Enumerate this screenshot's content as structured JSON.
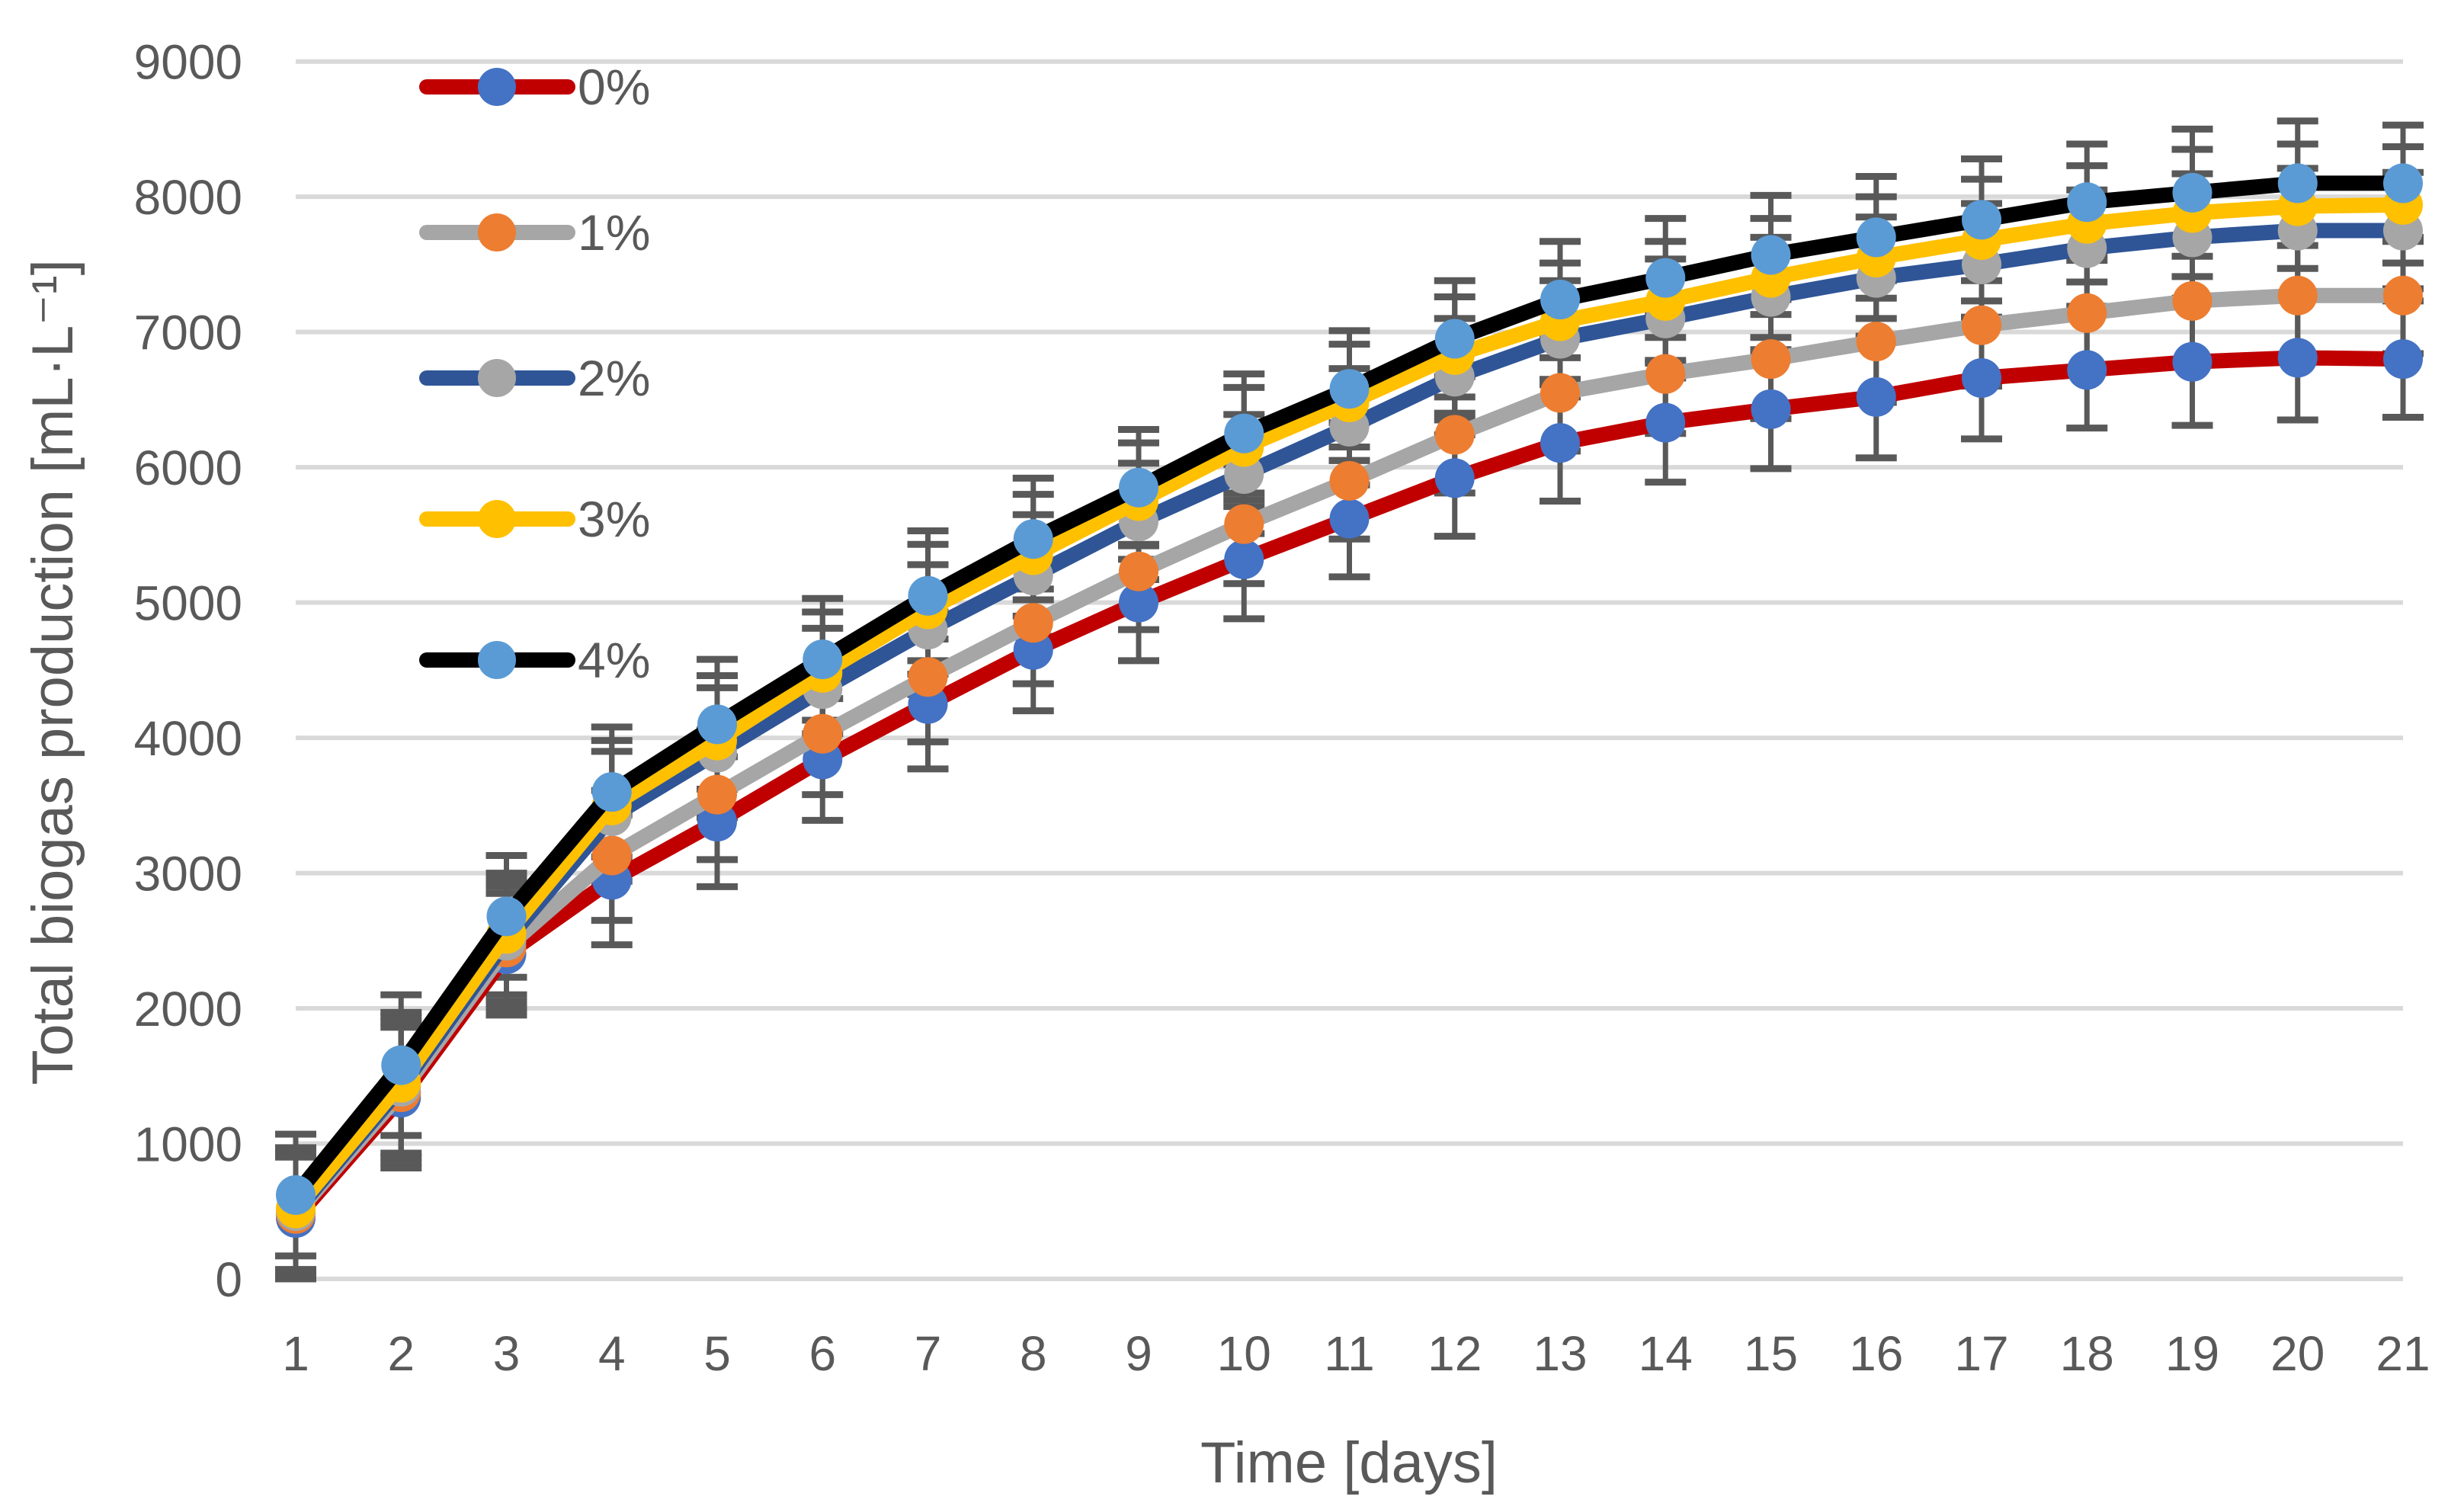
{
  "chart_data": {
    "type": "line",
    "title": "",
    "xlabel": "Time [days]",
    "ylabel": "Total biogas production [mL·L⁻¹]",
    "x": [
      1,
      2,
      3,
      4,
      5,
      6,
      7,
      8,
      9,
      10,
      11,
      12,
      13,
      14,
      15,
      16,
      17,
      18,
      19,
      20,
      21
    ],
    "xtick_labels": [
      "1",
      "2",
      "3",
      "4",
      "5",
      "6",
      "7",
      "8",
      "9",
      "10",
      "11",
      "12",
      "13",
      "14",
      "15",
      "16",
      "17",
      "18",
      "19",
      "20",
      "21"
    ],
    "ytick_labels": [
      "0",
      "1000",
      "2000",
      "3000",
      "4000",
      "5000",
      "6000",
      "7000",
      "8000",
      "9000"
    ],
    "ylim": [
      0,
      9000
    ],
    "ytick_step": 1000,
    "grid": true,
    "legend_position": "top-left-inside",
    "units": "mL·L⁻¹",
    "series": [
      {
        "name": "0%",
        "line_color": "#C00000",
        "marker_color": "#4472C4",
        "values": [
          450,
          1340,
          2400,
          2950,
          3380,
          3840,
          4250,
          4650,
          5000,
          5320,
          5620,
          5920,
          6180,
          6330,
          6430,
          6520,
          6660,
          6720,
          6780,
          6810,
          6800
        ]
      },
      {
        "name": "1%",
        "line_color": "#A6A6A6",
        "marker_color": "#ED7D31",
        "values": [
          480,
          1380,
          2450,
          3130,
          3580,
          4030,
          4450,
          4850,
          5230,
          5580,
          5900,
          6240,
          6550,
          6690,
          6800,
          6930,
          7050,
          7140,
          7230,
          7270,
          7270
        ]
      },
      {
        "name": "2%",
        "line_color": "#2F5597",
        "marker_color": "#A6A6A6",
        "values": [
          500,
          1420,
          2500,
          3420,
          3890,
          4360,
          4800,
          5200,
          5600,
          5950,
          6300,
          6670,
          6950,
          7100,
          7260,
          7400,
          7500,
          7620,
          7700,
          7750,
          7750
        ]
      },
      {
        "name": "3%",
        "line_color": "#FFC000",
        "marker_color": "#FFC000",
        "values": [
          520,
          1450,
          2550,
          3500,
          3980,
          4480,
          4950,
          5350,
          5750,
          6150,
          6480,
          6830,
          7080,
          7230,
          7400,
          7550,
          7680,
          7800,
          7880,
          7930,
          7940
        ]
      },
      {
        "name": "4%",
        "line_color": "#000000",
        "marker_color": "#5B9BD5",
        "values": [
          620,
          1580,
          2680,
          3600,
          4100,
          4580,
          5050,
          5470,
          5850,
          6250,
          6580,
          6950,
          7240,
          7400,
          7570,
          7700,
          7830,
          7960,
          8030,
          8100,
          8100
        ]
      }
    ],
    "error_bars": {
      "color": "#595959",
      "values_per_day": [
        450,
        520,
        450,
        480,
        480,
        450,
        480,
        450,
        430,
        440,
        430,
        430,
        430,
        440,
        440,
        450,
        450,
        430,
        470,
        460,
        430
      ]
    },
    "colors": {
      "gridline": "#D9D9D9",
      "text": "#595959",
      "background": "#FFFFFF"
    }
  }
}
